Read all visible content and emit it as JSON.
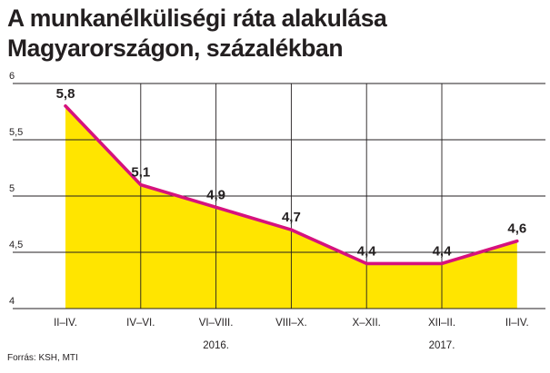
{
  "title_line1": "A munkanélküliségi ráta alakulása",
  "title_line2": "Magyarországon, százalékban",
  "source": "Forrás: KSH, MTI",
  "chart_data": {
    "type": "area",
    "categories": [
      "II–IV.",
      "IV–VI.",
      "VI–VIII.",
      "VIII–X.",
      "X–XII.",
      "XII–II.",
      "II–IV."
    ],
    "values": [
      5.8,
      5.1,
      4.9,
      4.7,
      4.4,
      4.4,
      4.6
    ],
    "value_labels": [
      "5,8",
      "5,1",
      "4,9",
      "4,7",
      "4,4",
      "4,4",
      "4,6"
    ],
    "year_labels": [
      {
        "label": "2016.",
        "category_index": 2
      },
      {
        "label": "2017.",
        "category_index": 5
      }
    ],
    "ylim": [
      4,
      6
    ],
    "yticks": [
      4,
      4.5,
      5,
      5.5,
      6
    ],
    "ytick_labels": [
      "4",
      "4,5",
      "5",
      "5,5",
      "6"
    ],
    "grid": true,
    "colors": {
      "line": "#d6127e",
      "fill": "#ffe500",
      "grid": "#231f20"
    }
  }
}
